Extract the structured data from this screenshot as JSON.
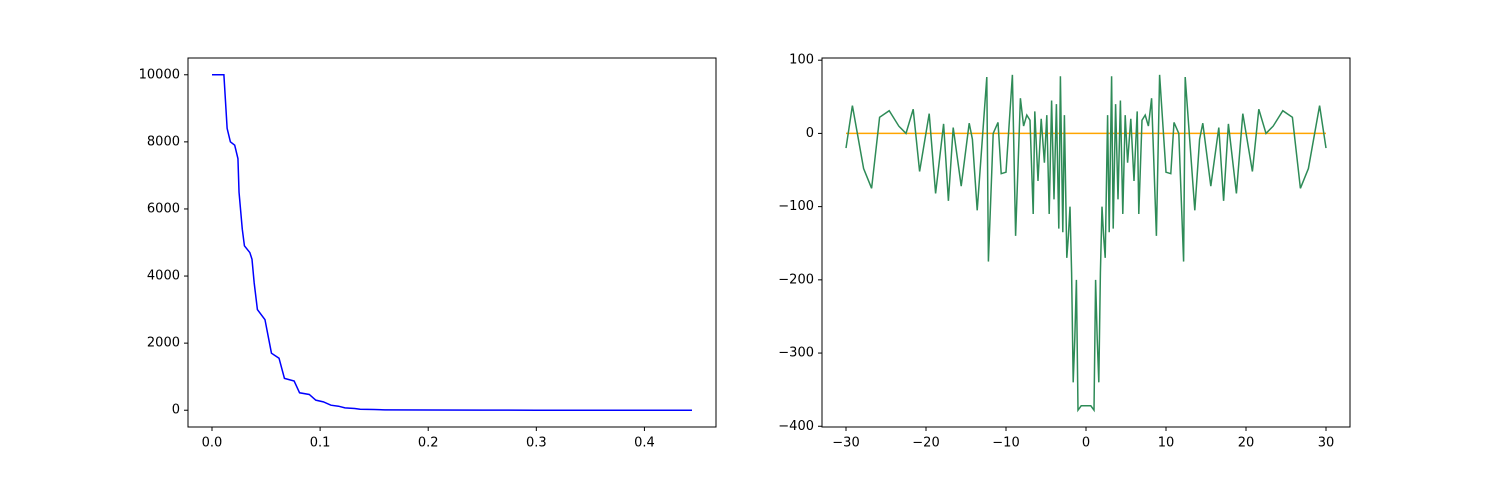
{
  "chart_data": [
    {
      "type": "line",
      "color": "#0000ff",
      "x": [
        0,
        0.011,
        0.014,
        0.017,
        0.021,
        0.024,
        0.025,
        0.028,
        0.03,
        0.035,
        0.037,
        0.039,
        0.042,
        0.049,
        0.052,
        0.055,
        0.062,
        0.067,
        0.076,
        0.081,
        0.09,
        0.096,
        0.103,
        0.11,
        0.117,
        0.123,
        0.132,
        0.137,
        0.15,
        0.16,
        0.2,
        0.25,
        0.3,
        0.35,
        0.444
      ],
      "values": [
        10000,
        10000,
        8400,
        8000,
        7900,
        7500,
        6500,
        5400,
        4900,
        4700,
        4500,
        3800,
        3000,
        2700,
        2200,
        1700,
        1550,
        950,
        870,
        520,
        470,
        300,
        250,
        150,
        120,
        70,
        50,
        30,
        20,
        12,
        5,
        2,
        1,
        0.5,
        0
      ],
      "xlim": [
        -0.0222,
        0.4662
      ],
      "ylim": [
        -500,
        10500
      ],
      "xticks": [
        {
          "value": 0,
          "label": "0.0"
        },
        0.1,
        0.2,
        0.3,
        0.4
      ],
      "yticks": [
        0,
        2000,
        4000,
        6000,
        8000,
        10000
      ]
    },
    {
      "type": "line",
      "series": [
        {
          "color": "#ffa500",
          "x": [
            -30,
            30
          ],
          "values": [
            0,
            0
          ]
        },
        {
          "color": "#2e8b57",
          "x": [
            -30,
            -29.2,
            -27.8,
            -26.8,
            -25.8,
            -24.6,
            -23.4,
            -22.5,
            -21.6,
            -20.8,
            -19.6,
            -18.8,
            -17.8,
            -17.2,
            -16.6,
            -15.6,
            -14.6,
            -14.2,
            -13.6,
            -12.4,
            -12.2,
            -11.6,
            -11,
            -10.6,
            -10,
            -9.2,
            -8.8,
            -8.2,
            -7.8,
            -7.4,
            -7,
            -6.6,
            -6.4,
            -6,
            -5.6,
            -5.2,
            -4.9,
            -4.6,
            -4.3,
            -4,
            -3.7,
            -3.4,
            -3.2,
            -2.9,
            -2.7,
            -2.4,
            -2.2,
            -2,
            -1.8,
            -1.6,
            -1.4,
            -1.2,
            -1,
            -0.6,
            0,
            0.6,
            1,
            1.2,
            1.4,
            1.6,
            1.8,
            2,
            2.2,
            2.4,
            2.7,
            2.9,
            3.2,
            3.4,
            3.7,
            4,
            4.3,
            4.6,
            4.9,
            5.2,
            5.6,
            6,
            6.4,
            6.6,
            7,
            7.4,
            7.8,
            8.2,
            8.8,
            9.2,
            10,
            10.6,
            11,
            11.6,
            12.2,
            12.4,
            13.6,
            14.2,
            14.6,
            15.6,
            16.6,
            17.2,
            17.8,
            18.8,
            19.6,
            20.8,
            21.6,
            22.5,
            23.4,
            24.6,
            25.8,
            26.8,
            27.8,
            29.2,
            30
          ],
          "values": [
            -20,
            38,
            -48,
            -75,
            22,
            31,
            10,
            0,
            33,
            -52,
            27,
            -82,
            13,
            -92,
            8,
            -72,
            14,
            -8,
            -105,
            77,
            -175,
            0,
            15,
            -55,
            -53,
            80,
            -140,
            48,
            10,
            25,
            18,
            -110,
            30,
            -65,
            20,
            -40,
            25,
            -110,
            45,
            -90,
            40,
            -130,
            78,
            -135,
            25,
            -170,
            -140,
            -100,
            -190,
            -340,
            -280,
            -200,
            -378,
            -372,
            -372,
            -372,
            -378,
            -200,
            -280,
            -340,
            -190,
            -100,
            -140,
            -170,
            25,
            -135,
            78,
            -130,
            40,
            -90,
            45,
            -110,
            25,
            -40,
            20,
            -65,
            30,
            -110,
            18,
            25,
            10,
            48,
            -140,
            80,
            -53,
            -55,
            15,
            0,
            -175,
            77,
            -105,
            -8,
            14,
            -72,
            8,
            -92,
            13,
            -82,
            27,
            -52,
            33,
            0,
            10,
            31,
            22,
            -75,
            -48,
            38,
            -20
          ]
        }
      ],
      "xlim": [
        -33,
        33
      ],
      "ylim": [
        -401,
        103
      ],
      "xticks": [
        {
          "value": -30,
          "label": "−30"
        },
        {
          "value": -20,
          "label": "−20"
        },
        {
          "value": -10,
          "label": "−10"
        },
        0,
        10,
        20,
        30
      ],
      "yticks": [
        {
          "value": -400,
          "label": "−400"
        },
        {
          "value": -300,
          "label": "−300"
        },
        {
          "value": -200,
          "label": "−200"
        },
        {
          "value": -100,
          "label": "−100"
        },
        0,
        100
      ]
    }
  ]
}
